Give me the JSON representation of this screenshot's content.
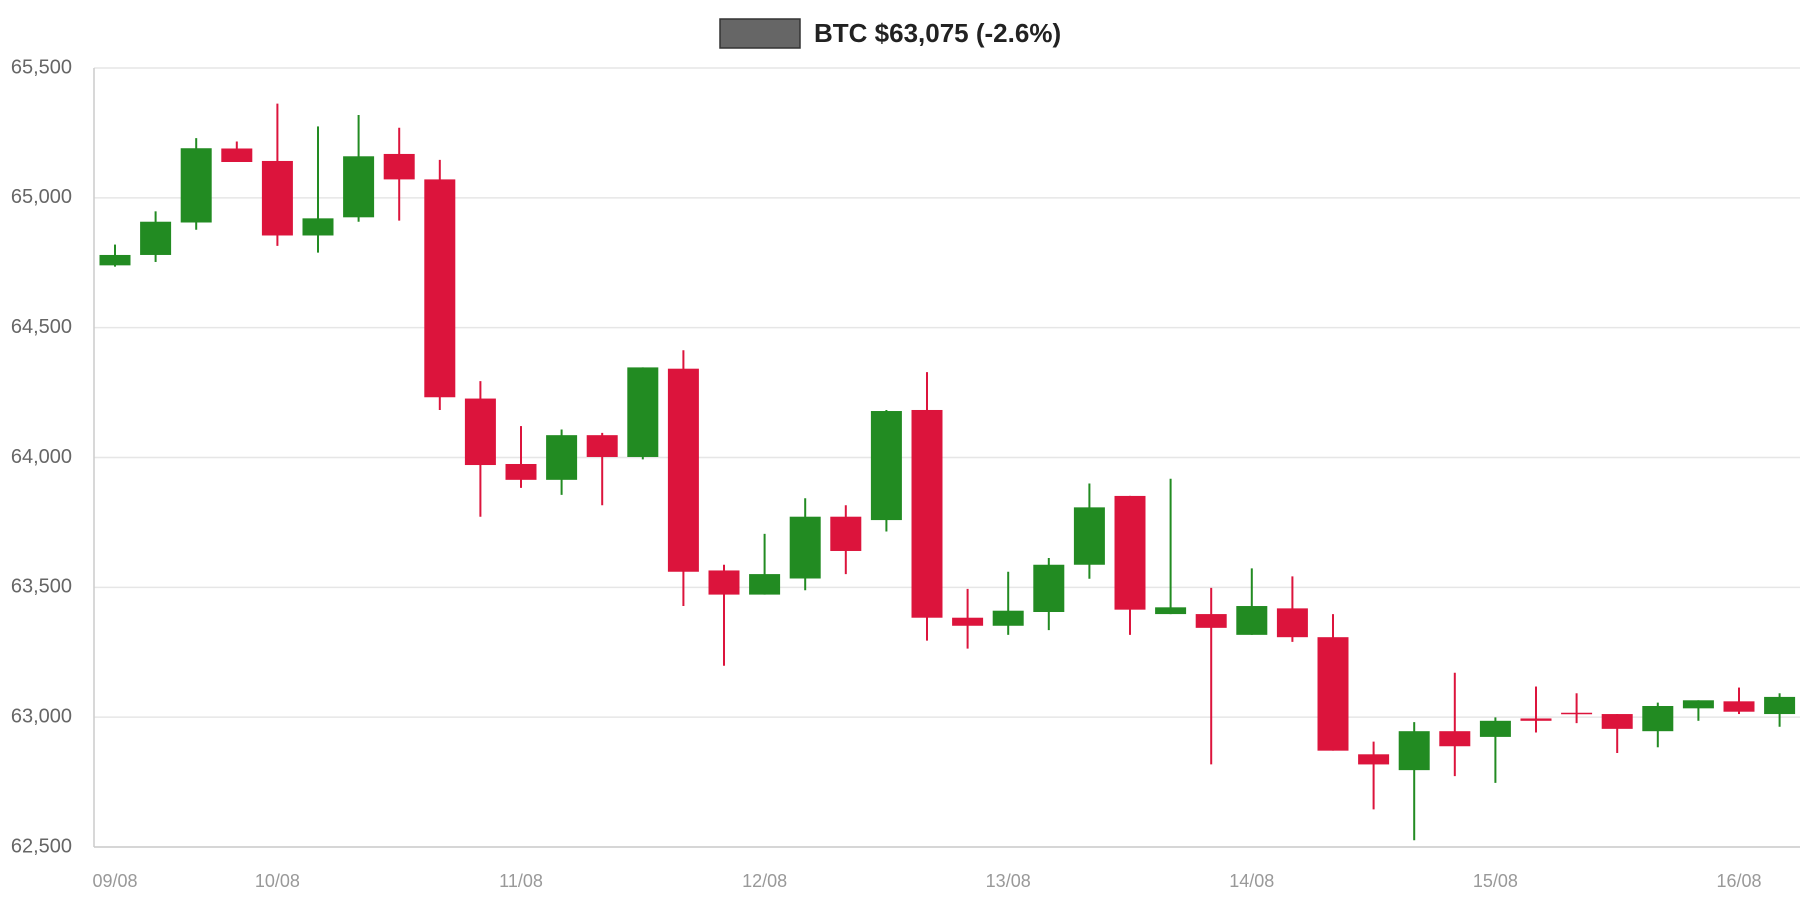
{
  "chart_data": {
    "type": "candlestick",
    "title": "BTC $63,075 (-2.6%)",
    "legend_color": "#666666",
    "up_color": "#228b22",
    "down_color": "#dc143c",
    "grid": true,
    "categories": [
      "09/08",
      null,
      null,
      null,
      "10/08",
      null,
      null,
      null,
      null,
      null,
      "11/08",
      null,
      null,
      null,
      null,
      null,
      "12/08",
      null,
      null,
      null,
      null,
      null,
      "13/08",
      null,
      null,
      null,
      null,
      null,
      "14/08",
      null,
      null,
      null,
      null,
      null,
      "15/08",
      null,
      null,
      null,
      null,
      null,
      "16/08",
      null
    ],
    "open": [
      64740,
      64780,
      64905,
      65190,
      65142,
      64855,
      64925,
      65169,
      65071,
      64227,
      63975,
      63914,
      64086,
      64002,
      64342,
      63565,
      63472,
      63534,
      63772,
      63759,
      64183,
      63383,
      63352,
      63405,
      63587,
      63852,
      63397,
      63397,
      63317,
      63419,
      63308,
      62857,
      62796,
      62946,
      62924,
      62995,
      63017,
      63012,
      62946,
      63034,
      63061,
      63012
    ],
    "high": [
      64820,
      64948,
      65230,
      65217,
      65363,
      65275,
      65319,
      65270,
      65146,
      64294,
      64121,
      64108,
      64095,
      64347,
      64413,
      63587,
      63706,
      63843,
      63816,
      64183,
      64329,
      63494,
      63560,
      63613,
      63900,
      63852,
      63918,
      63498,
      63573,
      63542,
      63397,
      62906,
      62981,
      63171,
      62999,
      63118,
      63092,
      63012,
      63056,
      63065,
      63114,
      63092
    ],
    "low": [
      64735,
      64753,
      64877,
      65138,
      64815,
      64789,
      64908,
      64912,
      64183,
      63772,
      63883,
      63856,
      63816,
      63993,
      63428,
      63198,
      63472,
      63489,
      63551,
      63715,
      63295,
      63264,
      63317,
      63335,
      63533,
      63317,
      63397,
      62818,
      63317,
      63290,
      62871,
      62645,
      62526,
      62773,
      62747,
      62941,
      62977,
      62862,
      62884,
      62986,
      63012,
      62963
    ],
    "close": [
      64780,
      64908,
      65191,
      65138,
      64855,
      64921,
      65160,
      65071,
      64232,
      63971,
      63914,
      64086,
      64002,
      64347,
      63560,
      63472,
      63551,
      63772,
      63640,
      64179,
      63383,
      63352,
      63410,
      63587,
      63808,
      63414,
      63423,
      63344,
      63428,
      63308,
      62871,
      62818,
      62946,
      62888,
      62986,
      62986,
      63012,
      62955,
      63043,
      63065,
      63021,
      63078
    ],
    "ylim": [
      62500,
      65500
    ],
    "yticks": [
      {
        "value": 62500,
        "label": "62,500"
      },
      {
        "value": 63000,
        "label": "63,000"
      },
      {
        "value": 63500,
        "label": "63,500"
      },
      {
        "value": 64000,
        "label": "64,000"
      },
      {
        "value": 64500,
        "label": "64,500"
      },
      {
        "value": 65000,
        "label": "65,000"
      },
      {
        "value": 65500,
        "label": "65,500"
      }
    ]
  }
}
